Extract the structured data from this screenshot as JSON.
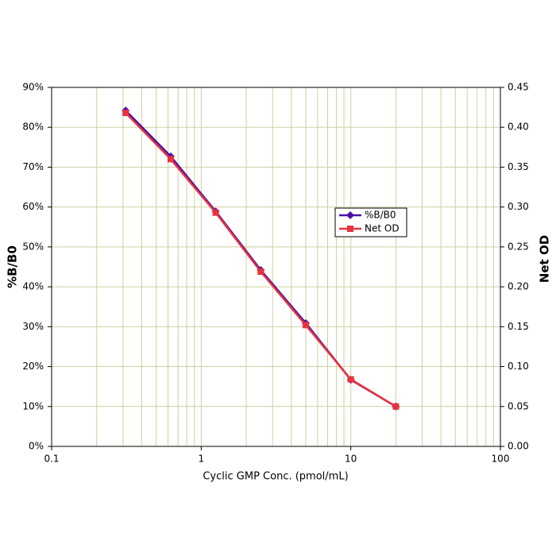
{
  "chart_data": {
    "type": "line",
    "x_label": "Cyclic GMP Conc. (pmol/mL)",
    "y_label": "%B/B0",
    "y2_label": "Net OD",
    "x": [
      0.3125,
      0.625,
      1.25,
      2.5,
      5,
      10,
      20
    ],
    "xlog": true,
    "xlim": [
      0.1,
      100
    ],
    "xticks": [
      0.1,
      1,
      10,
      100
    ],
    "ylim": [
      0,
      90
    ],
    "yticks": [
      {
        "value": 0,
        "label": "0%"
      },
      {
        "value": 10,
        "label": "10%"
      },
      {
        "value": 20,
        "label": "20%"
      },
      {
        "value": 30,
        "label": "30%"
      },
      {
        "value": 40,
        "label": "40%"
      },
      {
        "value": 50,
        "label": "50%"
      },
      {
        "value": 60,
        "label": "60%"
      },
      {
        "value": 70,
        "label": "70%"
      },
      {
        "value": 80,
        "label": "80%"
      },
      {
        "value": 90,
        "label": "90%"
      }
    ],
    "y2lim": [
      0,
      0.45
    ],
    "y2ticks": [
      {
        "value": 0,
        "label": "0.00"
      },
      0.05,
      {
        "value": 0.1,
        "label": "0.10"
      },
      0.15,
      {
        "value": 0.2,
        "label": "0.20"
      },
      0.25,
      {
        "value": 0.3,
        "label": "0.30"
      },
      0.35,
      {
        "value": 0.4,
        "label": "0.40"
      },
      0.45
    ],
    "grid": true,
    "legend": "center right",
    "series": [
      {
        "name": "%B/B0",
        "color": "#4a10a8",
        "marker": "diamond",
        "values": [
          84.2,
          72.7,
          58.9,
          44.2,
          30.9,
          16.7,
          10.0
        ]
      },
      {
        "name": "Net OD",
        "color": "#e8323c",
        "marker": "square",
        "axis": "y2",
        "values": [
          0.418,
          0.36,
          0.293,
          0.219,
          0.152,
          0.084,
          0.05
        ]
      }
    ]
  }
}
